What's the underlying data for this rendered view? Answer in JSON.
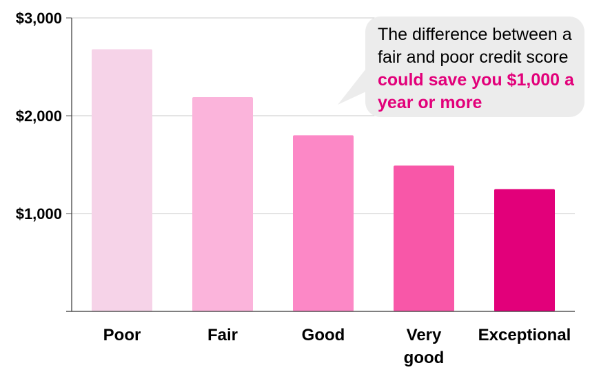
{
  "colors": {
    "bars": [
      "#f6d3e8",
      "#fbb4db",
      "#fc88c6",
      "#f857a8",
      "#e2007a"
    ],
    "highlight": "#e2007a",
    "callout_bg": "#ececec",
    "grid": "#c8c8c8"
  },
  "callout": {
    "text_normal": "The difference between a fair and poor credit score",
    "text_highlight": "could save you $1,000 a year or more"
  },
  "chart_data": {
    "type": "bar",
    "title": "",
    "xlabel": "",
    "ylabel": "",
    "categories": [
      "Poor",
      "Fair",
      "Good",
      "Very good",
      "Exceptional"
    ],
    "category_lines": [
      [
        "Poor"
      ],
      [
        "Fair"
      ],
      [
        "Good"
      ],
      [
        "Very",
        "good"
      ],
      [
        "Exceptional"
      ]
    ],
    "values": [
      2680,
      2190,
      1800,
      1490,
      1250
    ],
    "ylim": [
      0,
      3000
    ],
    "yticks": [
      1000,
      2000,
      3000
    ],
    "ytick_labels": [
      "$1,000",
      "$2,000",
      "$3,000"
    ],
    "grid": true,
    "legend": "none"
  }
}
